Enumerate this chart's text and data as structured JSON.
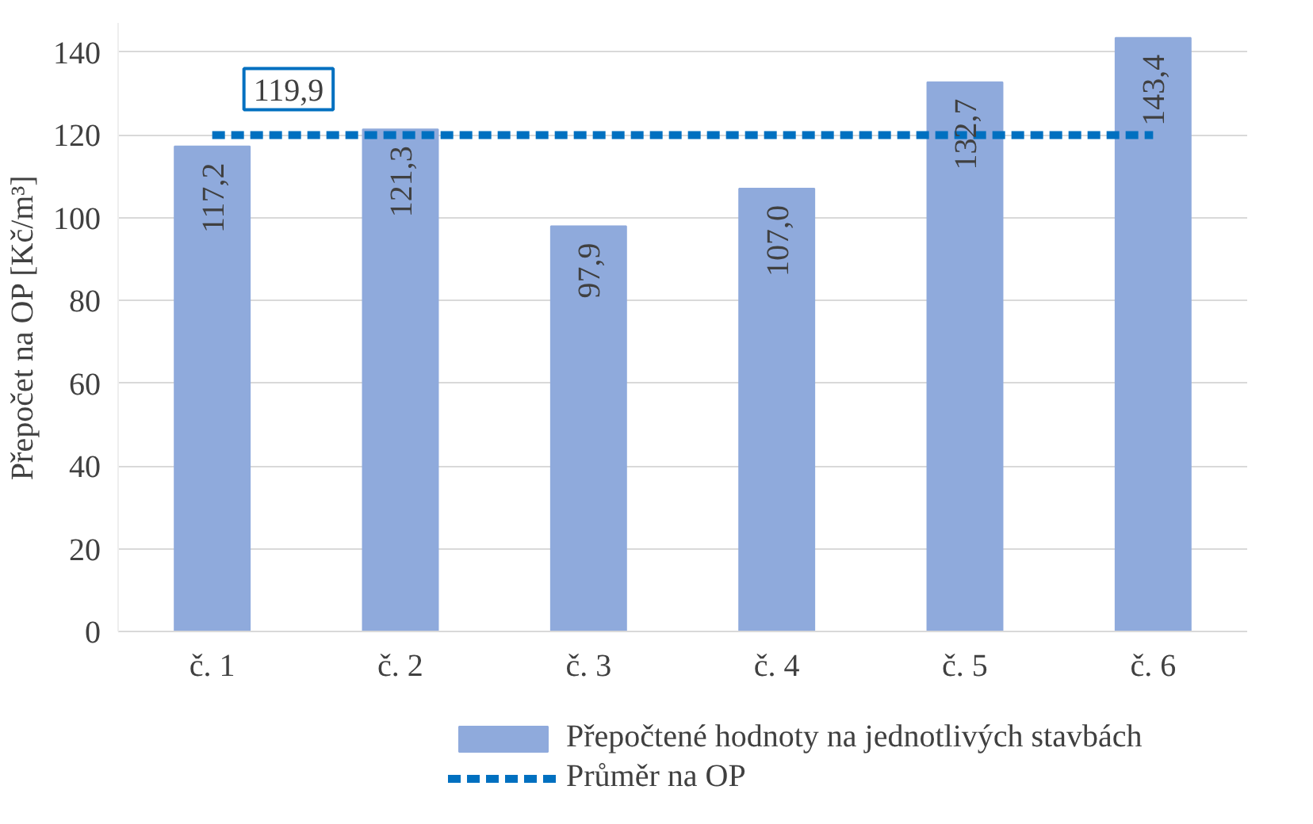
{
  "chart_data": {
    "type": "bar",
    "ylabel": "Přepočet na OP [Kč/m³]",
    "categories": [
      "č. 1",
      "č. 2",
      "č. 3",
      "č. 4",
      "č. 5",
      "č. 6"
    ],
    "series": [
      {
        "name": "Přepočtené hodnoty na jednotlivých stavbách",
        "type": "bar",
        "color": "#8faadc",
        "values": [
          117.2,
          121.3,
          97.9,
          107.0,
          132.7,
          143.4
        ],
        "value_labels": [
          "117,2",
          "121,3",
          "97,9",
          "107,0",
          "132,7",
          "143,4"
        ]
      },
      {
        "name": "Průměr na OP",
        "type": "line",
        "color": "#0070c0",
        "line_style": "dashed",
        "values": [
          119.9,
          119.9,
          119.9,
          119.9,
          119.9,
          119.9
        ],
        "value_labels": [
          "119,9",
          null,
          null,
          null,
          null,
          null
        ]
      }
    ],
    "ylim": [
      0,
      147
    ],
    "yticks": [
      0,
      20,
      40,
      60,
      80,
      100,
      120,
      140
    ],
    "grid": "y",
    "legend": "bottom"
  }
}
